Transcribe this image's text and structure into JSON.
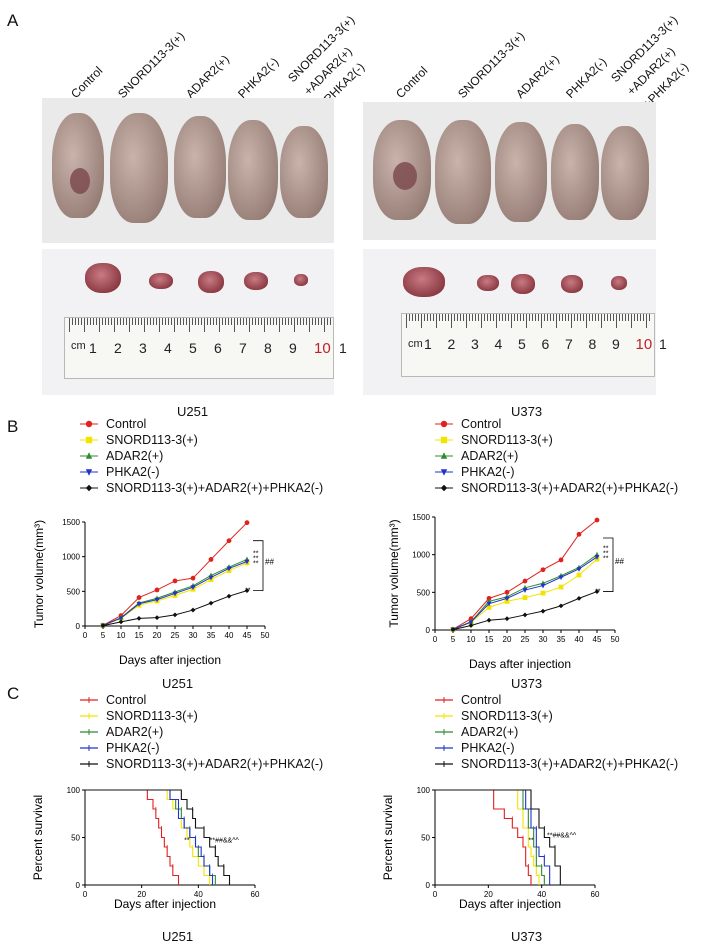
{
  "panels": {
    "a": "A",
    "b": "B",
    "c": "C"
  },
  "groups": [
    "Control",
    "SNORD113-3(+)",
    "ADAR2(+)",
    "PHKA2(-)",
    "SNORD113-3(+)\n+ADAR2(+)\n+PHKA2(-)"
  ],
  "ruler": {
    "unit": "cm",
    "numbers": [
      "1",
      "2",
      "3",
      "4",
      "5",
      "6",
      "7",
      "8",
      "9",
      "10",
      "1"
    ]
  },
  "cells": [
    "U251",
    "U373"
  ],
  "series_names": [
    "Control",
    "SNORD113-3(+)",
    "ADAR2(+)",
    "PHKA2(-)",
    "SNORD113-3(+)+ADAR2(+)+PHKA2(-)"
  ],
  "colors": {
    "control": "#e0211d",
    "snord": "#f2e400",
    "adar": "#2e8b2e",
    "phka": "#2233cc",
    "combo": "#111111"
  },
  "chart_data": [
    {
      "type": "line",
      "cell": "U251",
      "ylabel": "Tumor volume(mm³)",
      "xlabel": "Days after injection",
      "xlim": [
        0,
        50
      ],
      "ylim": [
        0,
        1500
      ],
      "xticks": [
        0,
        5,
        10,
        15,
        20,
        25,
        30,
        35,
        40,
        45,
        50
      ],
      "yticks": [
        0,
        500,
        1000,
        1500
      ],
      "x": [
        5,
        10,
        15,
        20,
        25,
        30,
        35,
        40,
        45
      ],
      "series": [
        {
          "name": "Control",
          "values": [
            10,
            150,
            410,
            520,
            650,
            690,
            960,
            1230,
            1490
          ]
        },
        {
          "name": "SNORD113-3(+)",
          "values": [
            8,
            110,
            300,
            360,
            440,
            530,
            670,
            800,
            910
          ]
        },
        {
          "name": "ADAR2(+)",
          "values": [
            8,
            120,
            330,
            400,
            490,
            580,
            730,
            850,
            960
          ]
        },
        {
          "name": "PHKA2(-)",
          "values": [
            8,
            115,
            320,
            380,
            470,
            560,
            700,
            830,
            930
          ]
        },
        {
          "name": "SNORD113-3(+)+ADAR2(+)+PHKA2(-)",
          "values": [
            5,
            60,
            110,
            120,
            160,
            230,
            330,
            430,
            510
          ]
        }
      ],
      "annotations": {
        "sig1": "**",
        "sig2": "##"
      }
    },
    {
      "type": "line",
      "cell": "U373",
      "ylabel": "Tumor volume(mm³)",
      "xlabel": "Days after injection",
      "xlim": [
        0,
        50
      ],
      "ylim": [
        0,
        1500
      ],
      "xticks": [
        0,
        5,
        10,
        15,
        20,
        25,
        30,
        35,
        40,
        45,
        50
      ],
      "yticks": [
        0,
        500,
        1000,
        1500
      ],
      "x": [
        5,
        10,
        15,
        20,
        25,
        30,
        35,
        40,
        45
      ],
      "series": [
        {
          "name": "Control",
          "values": [
            10,
            150,
            420,
            500,
            650,
            800,
            930,
            1270,
            1460
          ]
        },
        {
          "name": "SNORD113-3(+)",
          "values": [
            8,
            100,
            300,
            380,
            430,
            490,
            570,
            730,
            940
          ]
        },
        {
          "name": "ADAR2(+)",
          "values": [
            8,
            110,
            380,
            440,
            560,
            620,
            720,
            830,
            1000
          ]
        },
        {
          "name": "PHKA2(-)",
          "values": [
            8,
            105,
            350,
            420,
            530,
            590,
            700,
            810,
            970
          ]
        },
        {
          "name": "SNORD113-3(+)+ADAR2(+)+PHKA2(-)",
          "values": [
            5,
            60,
            130,
            150,
            200,
            250,
            320,
            420,
            510
          ]
        }
      ],
      "annotations": {
        "sig1": "**",
        "sig2": "##"
      }
    },
    {
      "type": "line",
      "cell": "U251",
      "ylabel": "Percent survival",
      "xlabel": "Days after injection",
      "xlim": [
        0,
        60
      ],
      "ylim": [
        0,
        100
      ],
      "xticks": [
        0,
        20,
        40,
        60
      ],
      "yticks": [
        0,
        50,
        100
      ],
      "series": [
        {
          "name": "Control",
          "steps": [
            [
              0,
              100
            ],
            [
              22,
              100
            ],
            [
              22,
              90
            ],
            [
              24,
              90
            ],
            [
              24,
              80
            ],
            [
              25,
              80
            ],
            [
              25,
              70
            ],
            [
              26,
              70
            ],
            [
              26,
              60
            ],
            [
              27,
              60
            ],
            [
              27,
              50
            ],
            [
              28,
              50
            ],
            [
              28,
              40
            ],
            [
              29,
              40
            ],
            [
              29,
              30
            ],
            [
              30,
              30
            ],
            [
              30,
              20
            ],
            [
              31,
              20
            ],
            [
              31,
              10
            ],
            [
              33,
              10
            ],
            [
              33,
              0
            ]
          ]
        },
        {
          "name": "SNORD113-3(+)",
          "steps": [
            [
              0,
              100
            ],
            [
              29,
              100
            ],
            [
              29,
              90
            ],
            [
              31,
              90
            ],
            [
              31,
              80
            ],
            [
              33,
              80
            ],
            [
              33,
              70
            ],
            [
              34,
              70
            ],
            [
              34,
              60
            ],
            [
              36,
              60
            ],
            [
              36,
              50
            ],
            [
              37,
              50
            ],
            [
              37,
              40
            ],
            [
              38,
              40
            ],
            [
              38,
              30
            ],
            [
              40,
              30
            ],
            [
              40,
              20
            ],
            [
              42,
              20
            ],
            [
              42,
              10
            ],
            [
              44,
              10
            ],
            [
              44,
              0
            ]
          ]
        },
        {
          "name": "ADAR2(+)",
          "steps": [
            [
              0,
              100
            ],
            [
              30,
              100
            ],
            [
              30,
              90
            ],
            [
              32,
              90
            ],
            [
              32,
              80
            ],
            [
              34,
              80
            ],
            [
              34,
              70
            ],
            [
              35,
              70
            ],
            [
              35,
              60
            ],
            [
              37,
              60
            ],
            [
              37,
              50
            ],
            [
              39,
              50
            ],
            [
              39,
              40
            ],
            [
              40,
              40
            ],
            [
              40,
              30
            ],
            [
              42,
              30
            ],
            [
              42,
              20
            ],
            [
              44,
              20
            ],
            [
              44,
              10
            ],
            [
              46,
              10
            ],
            [
              46,
              0
            ]
          ]
        },
        {
          "name": "PHKA2(-)",
          "steps": [
            [
              0,
              100
            ],
            [
              30,
              100
            ],
            [
              30,
              90
            ],
            [
              33,
              90
            ],
            [
              33,
              70
            ],
            [
              35,
              70
            ],
            [
              35,
              60
            ],
            [
              37,
              60
            ],
            [
              37,
              50
            ],
            [
              39,
              50
            ],
            [
              39,
              40
            ],
            [
              41,
              40
            ],
            [
              41,
              30
            ],
            [
              42,
              30
            ],
            [
              42,
              20
            ],
            [
              44,
              20
            ],
            [
              44,
              10
            ],
            [
              45,
              10
            ],
            [
              45,
              0
            ]
          ]
        },
        {
          "name": "SNORD113-3(+)+ADAR2(+)+PHKA2(-)",
          "steps": [
            [
              0,
              100
            ],
            [
              34,
              100
            ],
            [
              34,
              90
            ],
            [
              36,
              90
            ],
            [
              36,
              80
            ],
            [
              38,
              80
            ],
            [
              38,
              70
            ],
            [
              39,
              70
            ],
            [
              39,
              60
            ],
            [
              42,
              60
            ],
            [
              42,
              50
            ],
            [
              44,
              50
            ],
            [
              44,
              40
            ],
            [
              46,
              40
            ],
            [
              46,
              30
            ],
            [
              47,
              30
            ],
            [
              47,
              20
            ],
            [
              49,
              20
            ],
            [
              49,
              10
            ],
            [
              51,
              10
            ],
            [
              51,
              0
            ]
          ]
        }
      ],
      "annotations": {
        "sig1": "**",
        "sig2": "**##&&^^"
      }
    },
    {
      "type": "line",
      "cell": "U373",
      "ylabel": "Percent survival",
      "xlabel": "Days after injection",
      "xlim": [
        0,
        60
      ],
      "ylim": [
        0,
        100
      ],
      "xticks": [
        0,
        20,
        40,
        60
      ],
      "yticks": [
        0,
        50,
        100
      ],
      "series": [
        {
          "name": "Control",
          "steps": [
            [
              0,
              100
            ],
            [
              22,
              100
            ],
            [
              22,
              80
            ],
            [
              26,
              80
            ],
            [
              26,
              70
            ],
            [
              29,
              70
            ],
            [
              29,
              60
            ],
            [
              31,
              60
            ],
            [
              31,
              50
            ],
            [
              33,
              50
            ],
            [
              33,
              40
            ],
            [
              34,
              40
            ],
            [
              34,
              20
            ],
            [
              35,
              20
            ],
            [
              35,
              10
            ],
            [
              36,
              10
            ],
            [
              36,
              0
            ]
          ]
        },
        {
          "name": "SNORD113-3(+)",
          "steps": [
            [
              0,
              100
            ],
            [
              31,
              100
            ],
            [
              31,
              80
            ],
            [
              33,
              80
            ],
            [
              33,
              60
            ],
            [
              35,
              60
            ],
            [
              35,
              40
            ],
            [
              36,
              40
            ],
            [
              36,
              30
            ],
            [
              37,
              30
            ],
            [
              37,
              20
            ],
            [
              38,
              20
            ],
            [
              38,
              10
            ],
            [
              39,
              10
            ],
            [
              39,
              0
            ]
          ]
        },
        {
          "name": "ADAR2(+)",
          "steps": [
            [
              0,
              100
            ],
            [
              33,
              100
            ],
            [
              33,
              80
            ],
            [
              35,
              80
            ],
            [
              35,
              60
            ],
            [
              37,
              60
            ],
            [
              37,
              40
            ],
            [
              38,
              40
            ],
            [
              38,
              20
            ],
            [
              40,
              20
            ],
            [
              40,
              10
            ],
            [
              41,
              10
            ],
            [
              41,
              0
            ]
          ]
        },
        {
          "name": "PHKA2(-)",
          "steps": [
            [
              0,
              100
            ],
            [
              34,
              100
            ],
            [
              34,
              80
            ],
            [
              36,
              80
            ],
            [
              36,
              60
            ],
            [
              38,
              60
            ],
            [
              38,
              40
            ],
            [
              39,
              40
            ],
            [
              39,
              30
            ],
            [
              41,
              30
            ],
            [
              41,
              20
            ],
            [
              43,
              20
            ],
            [
              43,
              0
            ]
          ]
        },
        {
          "name": "SNORD113-3(+)+ADAR2(+)+PHKA2(-)",
          "steps": [
            [
              0,
              100
            ],
            [
              36,
              100
            ],
            [
              36,
              80
            ],
            [
              39,
              80
            ],
            [
              39,
              60
            ],
            [
              41,
              60
            ],
            [
              41,
              50
            ],
            [
              43,
              50
            ],
            [
              43,
              40
            ],
            [
              45,
              40
            ],
            [
              45,
              20
            ],
            [
              47,
              20
            ],
            [
              47,
              0
            ]
          ]
        }
      ],
      "annotations": {
        "sig1": "**",
        "sig2": "**##&&^^"
      }
    }
  ]
}
